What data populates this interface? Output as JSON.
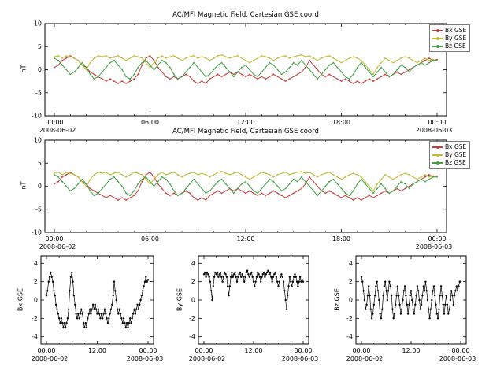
{
  "titles": {
    "panel1": "AC/MFI  Magnetic Field, Cartesian GSE coord",
    "panel2": "AC/MFI  Magnetic Field, Cartesian GSE coord"
  },
  "legend": {
    "items": [
      {
        "label": "Bx GSE",
        "color": "#bf4040"
      },
      {
        "label": "By GSE",
        "color": "#c3ba35"
      },
      {
        "label": "Bz GSE",
        "color": "#43a047"
      }
    ]
  },
  "chart_data": {
    "type": "line",
    "title": "AC/MFI  Magnetic Field, Cartesian GSE coord",
    "x_range_hours": [
      0,
      24
    ],
    "x_start_date": "2008-06-02",
    "x_end_date": "2008-06-03",
    "grid": false,
    "legend_position": "top-right",
    "series": [
      {
        "name": "Bx GSE",
        "color": "#bf4040",
        "values": [
          0.5,
          1,
          2,
          2.5,
          3,
          2.5,
          2,
          1,
          0.5,
          -0.5,
          -1,
          -1.5,
          -2,
          -2.5,
          -2,
          -2.5,
          -3,
          -2.5,
          -3,
          -2.5,
          -2,
          -1,
          1,
          2.5,
          3,
          2,
          0.5,
          -0.5,
          -1.5,
          -2,
          -1.5,
          -2,
          -1.5,
          -1,
          -1.5,
          -2.5,
          -3,
          -2.5,
          -3,
          -2,
          -1.5,
          -1,
          -1.5,
          -1,
          -0.5,
          -1,
          -0.5,
          -1,
          -1.5,
          -1,
          -1.5,
          -2,
          -1.5,
          -2,
          -1.5,
          -1,
          -1.5,
          -2,
          -2.5,
          -2,
          -1.5,
          -1,
          -0.5,
          0.5,
          2,
          1,
          0,
          -1,
          -1.5,
          -1,
          -1.5,
          -2,
          -2.5,
          -2,
          -2.5,
          -3,
          -2.5,
          -3,
          -2.5,
          -2,
          -2.5,
          -2,
          -1.5,
          -1,
          -1.5,
          -1,
          -0.5,
          -1,
          -0.5,
          0,
          0.5,
          1,
          1.5,
          2,
          2.5,
          2,
          2.2
        ]
      },
      {
        "name": "By GSE",
        "color": "#c3ba35",
        "values": [
          2.8,
          3,
          2.5,
          3,
          2.8,
          2.5,
          2,
          1,
          0,
          1.5,
          2.5,
          3,
          2.8,
          3,
          2.5,
          2.8,
          3,
          2.5,
          2,
          2.5,
          3,
          2.8,
          2.5,
          1.5,
          0.5,
          1.5,
          2.5,
          3,
          2.5,
          2.8,
          3,
          2.5,
          2,
          2.5,
          2.8,
          3,
          2.5,
          2.8,
          2.5,
          2,
          2.5,
          3,
          3.2,
          2.8,
          2.5,
          2.8,
          3,
          2.5,
          2,
          1.5,
          2,
          2.5,
          3,
          2.8,
          2.5,
          2,
          2.5,
          2.8,
          3,
          2.5,
          2.8,
          3,
          3.2,
          2.8,
          3,
          2.5,
          2,
          2.5,
          2.8,
          3,
          2.5,
          2,
          1.5,
          2,
          2.5,
          2.8,
          2.5,
          2,
          1,
          0,
          -1,
          0.5,
          1.5,
          2.5,
          2,
          1.5,
          2,
          2.5,
          2.8,
          2.5,
          2,
          1.5,
          2,
          2.5,
          2,
          2.2,
          2
        ]
      },
      {
        "name": "Bz GSE",
        "color": "#43a047",
        "values": [
          2.5,
          2,
          1,
          0,
          -1,
          -0.5,
          0.5,
          1.5,
          0.5,
          -1,
          -2,
          -1.5,
          -0.5,
          0.5,
          1.5,
          2,
          1,
          0,
          -1.5,
          -2,
          -1,
          0.5,
          1.5,
          2,
          1,
          0,
          1,
          2,
          1.5,
          0.5,
          -1,
          -2,
          -1.5,
          -0.5,
          0.5,
          1.5,
          0.5,
          -0.5,
          -1.5,
          -1,
          0,
          1,
          1.5,
          0.5,
          -0.5,
          -1.5,
          -0.5,
          0.5,
          1,
          0,
          -1,
          -1.5,
          -0.5,
          0.5,
          1.5,
          1,
          0,
          -1,
          -0.5,
          0.5,
          1.5,
          1,
          2,
          1,
          0,
          -1,
          -2,
          -1,
          0,
          1,
          1.5,
          0.5,
          -0.5,
          -1.5,
          -2,
          -1,
          0.5,
          1.5,
          0.5,
          -0.5,
          -1.5,
          -0.5,
          0.5,
          -0.5,
          -1.5,
          -1,
          0,
          1,
          0.5,
          -0.5,
          0.5,
          1,
          1.5,
          1,
          1.5,
          2,
          2
        ]
      }
    ],
    "panels": [
      {
        "id": "top1",
        "title": "AC/MFI  Magnetic Field, Cartesian GSE coord",
        "ylabel": "nT",
        "ylim": [
          -10,
          10
        ],
        "yticks": [
          -10,
          -5,
          0,
          5,
          10
        ],
        "xticks": [
          0,
          6,
          12,
          18,
          24
        ],
        "xtick_labels": [
          "00:00",
          "06:00",
          "12:00",
          "18:00",
          "00:00"
        ],
        "series": [
          "Bx GSE",
          "By GSE",
          "Bz GSE"
        ],
        "legend": true,
        "markers": true
      },
      {
        "id": "top2",
        "title": "AC/MFI  Magnetic Field, Cartesian GSE coord",
        "ylabel": "nT",
        "ylim": [
          -10,
          10
        ],
        "yticks": [
          -10,
          -5,
          0,
          5,
          10
        ],
        "xticks": [
          0,
          6,
          12,
          18,
          24
        ],
        "xtick_labels": [
          "00:00",
          "06:00",
          "12:00",
          "18:00",
          "00:00"
        ],
        "series": [
          "Bx GSE",
          "By GSE",
          "Bz GSE"
        ],
        "legend": true,
        "markers": true
      },
      {
        "id": "bx",
        "ylabel": "Bx GSE",
        "ylim": [
          -4.8,
          4.8
        ],
        "yticks": [
          -4,
          -2,
          0,
          2,
          4
        ],
        "xticks": [
          0,
          12,
          24
        ],
        "xtick_labels": [
          "00:00",
          "12:00",
          "00:00"
        ],
        "series": [
          "Bx GSE"
        ],
        "color": "#000000",
        "legend": false,
        "markers": true
      },
      {
        "id": "by",
        "ylabel": "By GSE",
        "ylim": [
          -4.8,
          4.8
        ],
        "yticks": [
          -4,
          -2,
          0,
          2,
          4
        ],
        "xticks": [
          0,
          12,
          24
        ],
        "xtick_labels": [
          "00:00",
          "12:00",
          "00:00"
        ],
        "series": [
          "By GSE"
        ],
        "color": "#000000",
        "legend": false,
        "markers": true
      },
      {
        "id": "bz",
        "ylabel": "Bz GSE",
        "ylim": [
          -4.8,
          4.8
        ],
        "yticks": [
          -4,
          -2,
          0,
          2,
          4
        ],
        "xticks": [
          0,
          12,
          24
        ],
        "xtick_labels": [
          "00:00",
          "12:00",
          "00:00"
        ],
        "series": [
          "Bz GSE"
        ],
        "color": "#000000",
        "legend": false,
        "markers": true
      }
    ]
  }
}
